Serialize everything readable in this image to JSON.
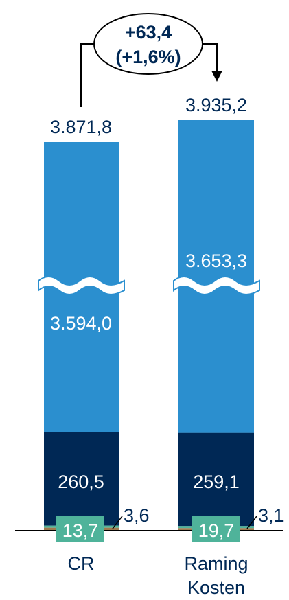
{
  "chart_data": {
    "type": "bar",
    "stacked": true,
    "axis_break": true,
    "categories": [
      "CR",
      "Raming Kosten"
    ],
    "totals": [
      "3.871,8",
      "3.935,2"
    ],
    "series": [
      {
        "values": [
          3.6,
          3.1
        ],
        "labels": [
          "3,6",
          "3,1"
        ],
        "color": "#9e7a4e"
      },
      {
        "values": [
          13.7,
          19.7
        ],
        "labels": [
          "13,7",
          "19,7"
        ],
        "color": "#4fb39a"
      },
      {
        "values": [
          260.5,
          259.1
        ],
        "labels": [
          "260,5",
          "259,1"
        ],
        "color": "#002855"
      },
      {
        "values": [
          3594.0,
          3653.3
        ],
        "labels": [
          "3.594,0",
          "3.653,3"
        ],
        "color": "#2b8fcf"
      }
    ],
    "difference": {
      "value": "+63,4",
      "percent": "(+1,6%)"
    }
  }
}
